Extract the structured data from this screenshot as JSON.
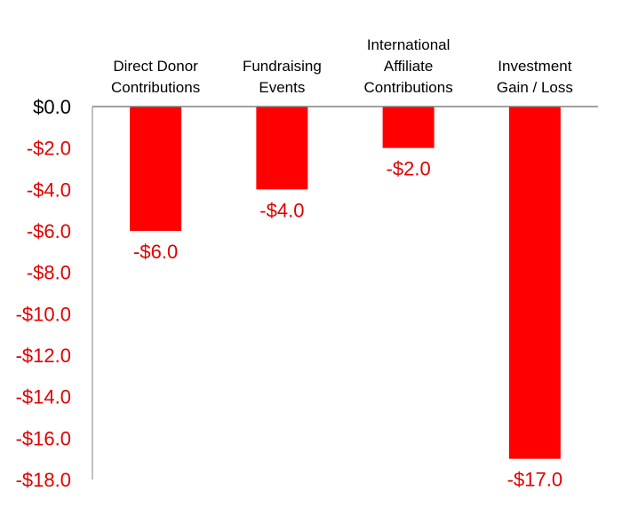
{
  "chart_data": {
    "type": "bar",
    "title": "",
    "xlabel": "",
    "ylabel": "",
    "categories": [
      [
        "Direct Donor",
        "Contributions"
      ],
      [
        "Fundraising",
        "Events"
      ],
      [
        "International",
        "Affiliate",
        "Contributions"
      ],
      [
        "Investment",
        "Gain / Loss"
      ]
    ],
    "values": [
      -6.0,
      -4.0,
      -2.0,
      -17.0
    ],
    "data_labels": [
      "-$6.0",
      "-$4.0",
      "-$2.0",
      "-$17.0"
    ],
    "ylim": [
      -18,
      0
    ],
    "yticks": [
      {
        "value": 0,
        "label": "$0.0"
      },
      {
        "value": -2,
        "label": "-$2.0"
      },
      {
        "value": -4,
        "label": "-$4.0"
      },
      {
        "value": -6,
        "label": "-$6.0"
      },
      {
        "value": -8,
        "label": "-$8.0"
      },
      {
        "value": -10,
        "label": "-$10.0"
      },
      {
        "value": -12,
        "label": "-$12.0"
      },
      {
        "value": -14,
        "label": "-$14.0"
      },
      {
        "value": -16,
        "label": "-$16.0"
      },
      {
        "value": -18,
        "label": "-$18.0"
      }
    ],
    "grid": false,
    "legend": "none",
    "colors": {
      "bar": "#ff0000",
      "negative_text": "#e00000",
      "zero_text": "#000000",
      "axis": "#808080",
      "category_text": "#000000"
    }
  }
}
